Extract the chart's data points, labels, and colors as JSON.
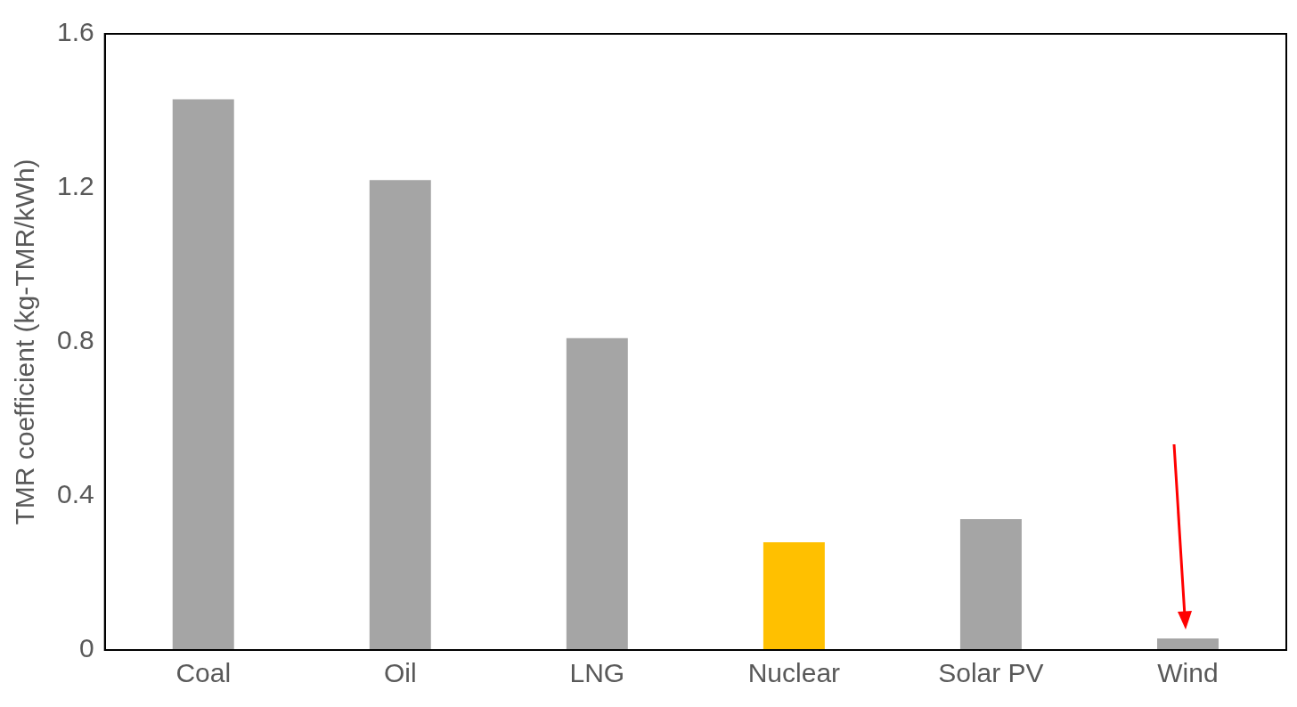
{
  "chart_data": {
    "type": "bar",
    "ylabel": "TMR coefficient (kg-TMR/kWh)",
    "categories": [
      "Coal",
      "Oil",
      "LNG",
      "Nuclear",
      "Solar PV",
      "Wind"
    ],
    "values": [
      1.43,
      1.22,
      0.81,
      0.28,
      0.34,
      0.03
    ],
    "colors": [
      "#a5a5a5",
      "#a5a5a5",
      "#a5a5a5",
      "#ffc000",
      "#a5a5a5",
      "#a5a5a5"
    ],
    "ylim": [
      0,
      1.6
    ],
    "yticks": [
      0,
      0.4,
      0.8,
      1.2,
      1.6
    ],
    "grid": false,
    "legend": false
  }
}
